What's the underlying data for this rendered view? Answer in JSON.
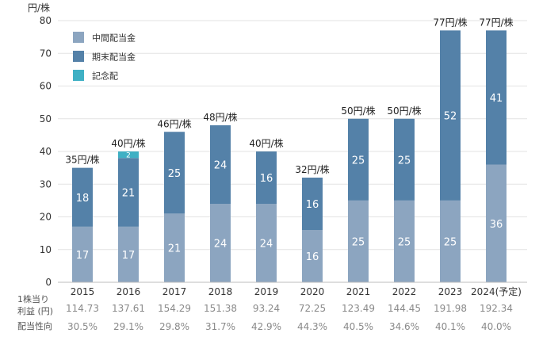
{
  "chart_data": {
    "type": "bar",
    "stacked": true,
    "y_unit": "円/株",
    "ylim": [
      0,
      80
    ],
    "yticks": [
      0,
      10,
      20,
      30,
      40,
      50,
      60,
      70,
      80
    ],
    "grid": true,
    "legend_position": "top-left",
    "categories": [
      "2015",
      "2016",
      "2017",
      "2018",
      "2019",
      "2020",
      "2021",
      "2022",
      "2023",
      "2024(予定)"
    ],
    "series": [
      {
        "name": "中間配当金",
        "color": "#8ca5c0",
        "label_color": "#ffffff",
        "values": [
          17,
          17,
          21,
          24,
          24,
          16,
          25,
          25,
          25,
          36
        ]
      },
      {
        "name": "期末配当金",
        "color": "#5481a8",
        "label_color": "#ffffff",
        "values": [
          18,
          21,
          25,
          24,
          16,
          16,
          25,
          25,
          52,
          41
        ]
      },
      {
        "name": "記念配",
        "color": "#3fb0c4",
        "label_color": "#ffffff",
        "values": [
          0,
          2,
          0,
          0,
          0,
          0,
          0,
          0,
          0,
          0
        ]
      }
    ],
    "totals": [
      35,
      40,
      46,
      48,
      40,
      32,
      50,
      50,
      77,
      77
    ],
    "total_labels": [
      "35円/株",
      "40円/株",
      "46円/株",
      "48円/株",
      "40円/株",
      "32円/株",
      "50円/株",
      "50円/株",
      "77円/株",
      "77円/株"
    ],
    "table": {
      "eps_label_line1": "1株当り",
      "eps_label_line2": "利益 (円)",
      "eps": [
        "114.73",
        "137.61",
        "154.29",
        "151.38",
        "93.24",
        "72.25",
        "123.49",
        "144.45",
        "191.98",
        "192.34"
      ],
      "payout_label": "配当性向",
      "payout": [
        "30.5%",
        "29.1%",
        "29.8%",
        "31.7%",
        "42.9%",
        "44.3%",
        "40.5%",
        "34.6%",
        "40.1%",
        "40.0%"
      ]
    }
  }
}
